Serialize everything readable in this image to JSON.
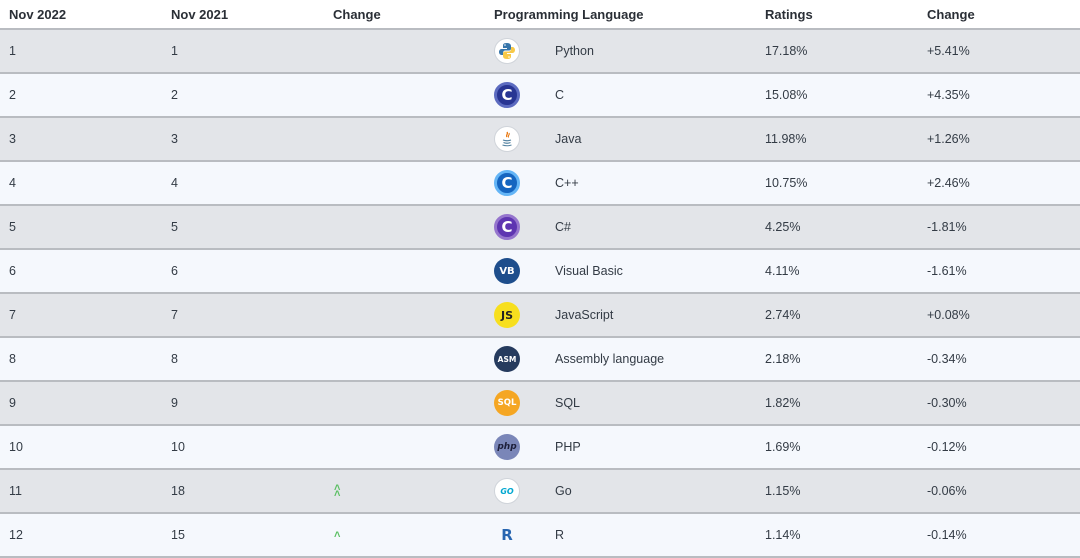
{
  "headers": [
    "Nov 2022",
    "Nov 2021",
    "Change",
    "Programming Language",
    "Ratings",
    "Change"
  ],
  "rows": [
    {
      "rank_2022": "1",
      "rank_2021": "1",
      "trend": "",
      "logo_icon": "python-logo-icon",
      "logo_text": "",
      "language": "Python",
      "rating": "17.18%",
      "change": "+5.41%"
    },
    {
      "rank_2022": "2",
      "rank_2021": "2",
      "trend": "",
      "logo_icon": "c-logo-icon",
      "logo_text": "C",
      "language": "C",
      "rating": "15.08%",
      "change": "+4.35%"
    },
    {
      "rank_2022": "3",
      "rank_2021": "3",
      "trend": "",
      "logo_icon": "java-logo-icon",
      "logo_text": "",
      "language": "Java",
      "rating": "11.98%",
      "change": "+1.26%"
    },
    {
      "rank_2022": "4",
      "rank_2021": "4",
      "trend": "",
      "logo_icon": "cpp-logo-icon",
      "logo_text": "C",
      "language": "C++",
      "rating": "10.75%",
      "change": "+2.46%"
    },
    {
      "rank_2022": "5",
      "rank_2021": "5",
      "trend": "",
      "logo_icon": "csharp-logo-icon",
      "logo_text": "C",
      "language": "C#",
      "rating": "4.25%",
      "change": "-1.81%"
    },
    {
      "rank_2022": "6",
      "rank_2021": "6",
      "trend": "",
      "logo_icon": "visual-basic-logo-icon",
      "logo_text": "VB",
      "language": "Visual Basic",
      "rating": "4.11%",
      "change": "-1.61%"
    },
    {
      "rank_2022": "7",
      "rank_2021": "7",
      "trend": "",
      "logo_icon": "javascript-logo-icon",
      "logo_text": "JS",
      "language": "JavaScript",
      "rating": "2.74%",
      "change": "+0.08%"
    },
    {
      "rank_2022": "8",
      "rank_2021": "8",
      "trend": "",
      "logo_icon": "assembly-logo-icon",
      "logo_text": "ASM",
      "language": "Assembly language",
      "rating": "2.18%",
      "change": "-0.34%"
    },
    {
      "rank_2022": "9",
      "rank_2021": "9",
      "trend": "",
      "logo_icon": "sql-logo-icon",
      "logo_text": "SQL",
      "language": "SQL",
      "rating": "1.82%",
      "change": "-0.30%"
    },
    {
      "rank_2022": "10",
      "rank_2021": "10",
      "trend": "",
      "logo_icon": "php-logo-icon",
      "logo_text": "php",
      "language": "PHP",
      "rating": "1.69%",
      "change": "-0.12%"
    },
    {
      "rank_2022": "11",
      "rank_2021": "18",
      "trend": "double-up",
      "logo_icon": "go-logo-icon",
      "logo_text": "GO",
      "language": "Go",
      "rating": "1.15%",
      "change": "-0.06%"
    },
    {
      "rank_2022": "12",
      "rank_2021": "15",
      "trend": "up",
      "logo_icon": "r-logo-icon",
      "logo_text": "R",
      "language": "R",
      "rating": "1.14%",
      "change": "-0.14%"
    }
  ],
  "colors": {
    "row_odd": "#e3e5e9",
    "row_even": "#f5f8fd",
    "divider": "#b9bcc1",
    "trend_up": "#5bbf63"
  }
}
